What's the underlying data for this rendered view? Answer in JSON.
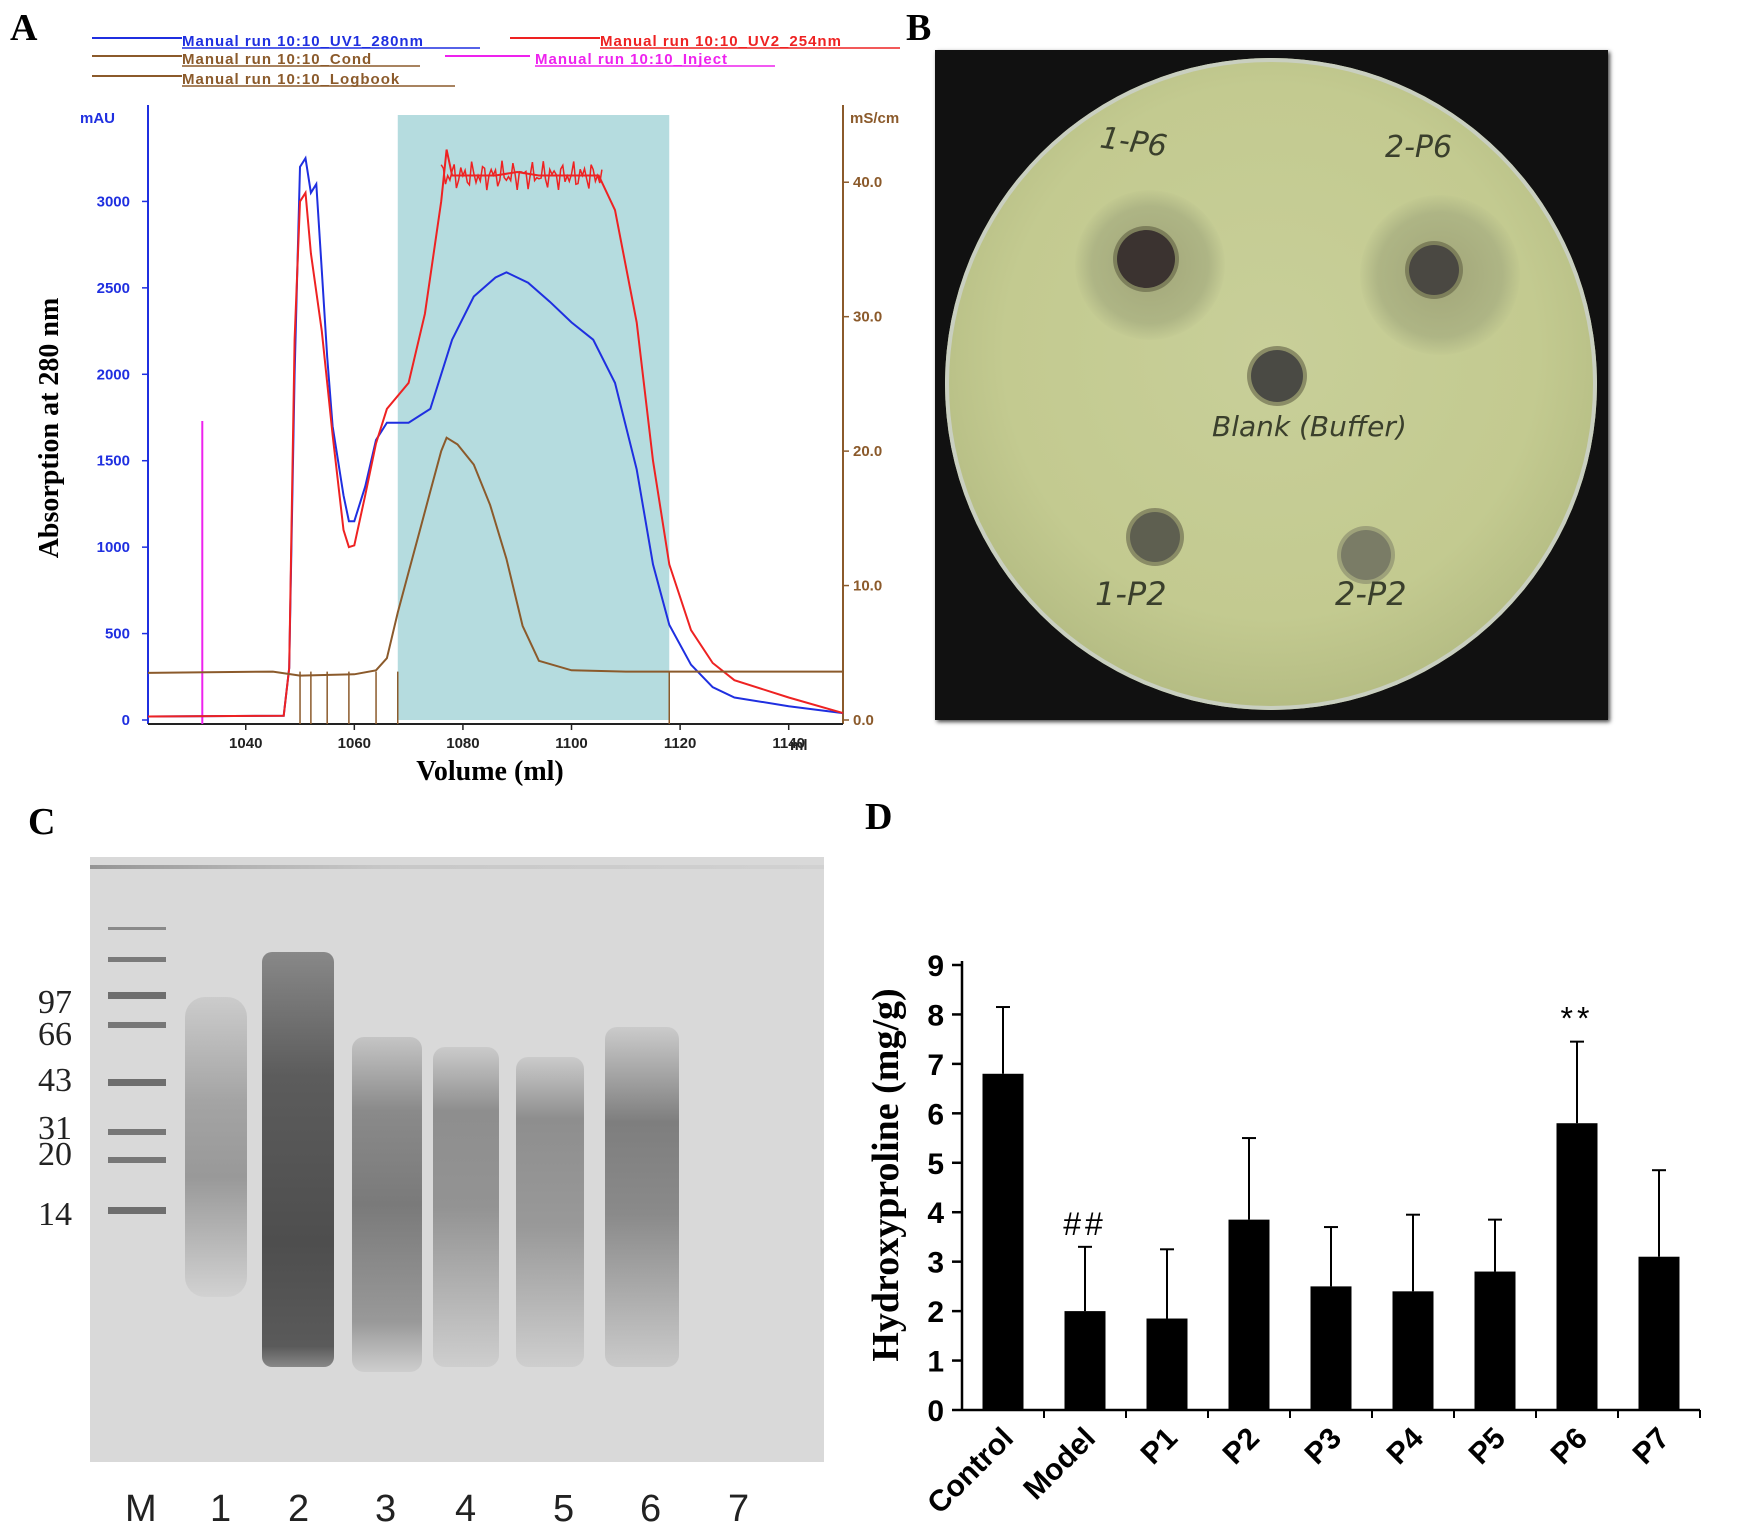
{
  "panels": {
    "a": "A",
    "b": "B",
    "c": "C",
    "d": "D"
  },
  "chart_data": [
    {
      "type": "line",
      "legend": [
        {
          "name": "Manual run 10:10_UV1_280nm",
          "color": "#1f2fe0"
        },
        {
          "name": "Manual run 10:10_UV2_254nm",
          "color": "#ee2222"
        },
        {
          "name": "Manual run 10:10_Cond",
          "color": "#8b5a2b"
        },
        {
          "name": "Manual run 10:10_Inject",
          "color": "#ee22ee"
        },
        {
          "name": "Manual run 10:10_Logbook",
          "color": "#8b5a2b"
        }
      ],
      "xlabel": "Volume (ml)",
      "xunit": "ml",
      "ylabel": "Absorption at 280 nm",
      "yunit_left": "mAU",
      "yunit_right": "mS/cm",
      "xlim": [
        1022,
        1150
      ],
      "ylim_left": [
        0,
        3500
      ],
      "ylim_right": [
        0,
        45
      ],
      "x_ticks": [
        "1040",
        "1060",
        "1080",
        "1100",
        "1120",
        "1140"
      ],
      "y_ticks_left": [
        "0",
        "500",
        "1000",
        "1500",
        "2000",
        "2500",
        "3000"
      ],
      "y_ticks_right": [
        "0.0",
        "10.0",
        "20.0",
        "30.0",
        "40.0"
      ],
      "shaded_region": [
        1068,
        1118
      ],
      "inject_x": 1032,
      "inject_height": 1730,
      "logbook_marks": [
        1050,
        1052,
        1055,
        1059,
        1064,
        1068,
        1118
      ],
      "series": [
        {
          "name": "UV1_280nm",
          "color": "#1f2fe0",
          "points": [
            [
              1022,
              20
            ],
            [
              1047,
              25
            ],
            [
              1048,
              300
            ],
            [
              1049,
              2000
            ],
            [
              1050,
              3200
            ],
            [
              1051,
              3250
            ],
            [
              1052,
              3050
            ],
            [
              1053,
              3100
            ],
            [
              1054,
              2600
            ],
            [
              1055,
              2100
            ],
            [
              1056,
              1700
            ],
            [
              1058,
              1300
            ],
            [
              1059,
              1150
            ],
            [
              1060,
              1150
            ],
            [
              1062,
              1350
            ],
            [
              1064,
              1620
            ],
            [
              1066,
              1720
            ],
            [
              1070,
              1720
            ],
            [
              1074,
              1800
            ],
            [
              1078,
              2200
            ],
            [
              1082,
              2450
            ],
            [
              1086,
              2560
            ],
            [
              1088,
              2590
            ],
            [
              1092,
              2530
            ],
            [
              1096,
              2420
            ],
            [
              1100,
              2300
            ],
            [
              1104,
              2200
            ],
            [
              1108,
              1950
            ],
            [
              1112,
              1450
            ],
            [
              1115,
              900
            ],
            [
              1118,
              550
            ],
            [
              1122,
              320
            ],
            [
              1126,
              190
            ],
            [
              1130,
              130
            ],
            [
              1140,
              80
            ],
            [
              1150,
              40
            ]
          ]
        },
        {
          "name": "UV2_254nm",
          "color": "#ee2222",
          "points": [
            [
              1022,
              20
            ],
            [
              1047,
              25
            ],
            [
              1048,
              300
            ],
            [
              1049,
              2200
            ],
            [
              1050,
              3000
            ],
            [
              1051,
              3050
            ],
            [
              1052,
              2700
            ],
            [
              1054,
              2250
            ],
            [
              1056,
              1650
            ],
            [
              1058,
              1100
            ],
            [
              1059,
              1000
            ],
            [
              1060,
              1010
            ],
            [
              1062,
              1300
            ],
            [
              1064,
              1600
            ],
            [
              1066,
              1800
            ],
            [
              1070,
              1950
            ],
            [
              1073,
              2350
            ],
            [
              1076,
              3000
            ],
            [
              1077,
              3300
            ],
            [
              1078,
              3150
            ],
            [
              1082,
              3150
            ],
            [
              1086,
              3150
            ],
            [
              1090,
              3170
            ],
            [
              1094,
              3150
            ],
            [
              1098,
              3150
            ],
            [
              1102,
              3150
            ],
            [
              1105,
              3150
            ],
            [
              1108,
              2950
            ],
            [
              1112,
              2300
            ],
            [
              1115,
              1500
            ],
            [
              1118,
              900
            ],
            [
              1122,
              520
            ],
            [
              1126,
              330
            ],
            [
              1130,
              230
            ],
            [
              1140,
              130
            ],
            [
              1150,
              40
            ]
          ]
        },
        {
          "name": "Cond",
          "color": "#8b5a2b",
          "axis": "right",
          "points": [
            [
              1022,
              3.5
            ],
            [
              1045,
              3.6
            ],
            [
              1050,
              3.3
            ],
            [
              1060,
              3.4
            ],
            [
              1064,
              3.7
            ],
            [
              1066,
              4.6
            ],
            [
              1068,
              8
            ],
            [
              1070,
              11
            ],
            [
              1072,
              14
            ],
            [
              1074,
              17
            ],
            [
              1076,
              20
            ],
            [
              1077,
              21
            ],
            [
              1079,
              20.5
            ],
            [
              1082,
              19
            ],
            [
              1085,
              16
            ],
            [
              1088,
              12
            ],
            [
              1091,
              7
            ],
            [
              1094,
              4.4
            ],
            [
              1100,
              3.7
            ],
            [
              1110,
              3.6
            ],
            [
              1150,
              3.6
            ]
          ]
        }
      ]
    },
    {
      "type": "bar",
      "categories": [
        "Control",
        "Model",
        "P1",
        "P2",
        "P3",
        "P4",
        "P5",
        "P6",
        "P7"
      ],
      "values": [
        6.8,
        2.0,
        1.85,
        3.85,
        2.5,
        2.4,
        2.8,
        5.8,
        3.1
      ],
      "errors": [
        1.35,
        1.3,
        1.4,
        1.65,
        1.2,
        1.55,
        1.05,
        1.65,
        1.75
      ],
      "annotations": [
        {
          "category": "Model",
          "text": "##"
        },
        {
          "category": "P6",
          "text": "**"
        }
      ],
      "ylabel": "Hydroxyproline (mg/g)",
      "ylim": [
        0,
        9
      ],
      "y_ticks": [
        "0",
        "1",
        "2",
        "3",
        "4",
        "5",
        "6",
        "7",
        "8",
        "9"
      ]
    }
  ],
  "plate_labels": {
    "top_left": "1-P6",
    "top_right": "2-P6",
    "center": "Blank (Buffer)",
    "bottom_left": "1-P2",
    "bottom_right": "2-P2"
  },
  "gel": {
    "markers": [
      "97",
      "66",
      "43",
      "31",
      "20",
      "14"
    ],
    "lanes": [
      "M",
      "1",
      "2",
      "3",
      "4",
      "5",
      "6",
      "7"
    ]
  }
}
